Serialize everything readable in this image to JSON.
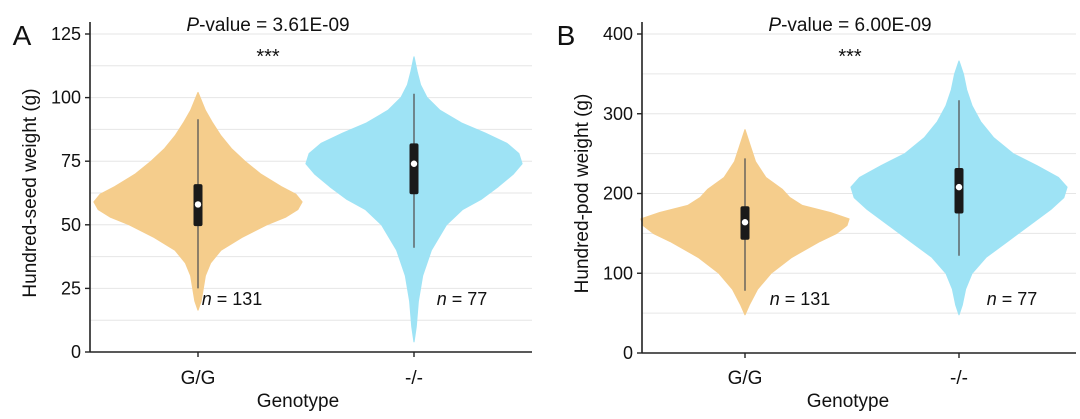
{
  "chart_data": [
    {
      "panel_label": "A",
      "type": "violin",
      "pvalue_label": "P",
      "pvalue_suffix": "-value  = 3.61E-09",
      "significance": "***",
      "xlabel": "Genotype",
      "ylabel": "Hundred-seed weight (g)",
      "ylim": [
        0,
        125
      ],
      "yticks": [
        0,
        25,
        50,
        75,
        100,
        125
      ],
      "grid": true,
      "categories": [
        "G/G",
        "-/-"
      ],
      "groups": [
        {
          "category": "G/G",
          "color": "#f5cd8c",
          "n_label": "n",
          "n_value": " = 131",
          "median": 58,
          "q1": 49.5,
          "q3": 66,
          "whisker_low": 25,
          "whisker_high": 91.5,
          "range": [
            16.5,
            102
          ],
          "density": [
            [
              16.5,
              0
            ],
            [
              20,
              0.03
            ],
            [
              25,
              0.05
            ],
            [
              30,
              0.07
            ],
            [
              35,
              0.12
            ],
            [
              40,
              0.22
            ],
            [
              45,
              0.42
            ],
            [
              50,
              0.66
            ],
            [
              53,
              0.84
            ],
            [
              56,
              0.96
            ],
            [
              59,
              1.0
            ],
            [
              62,
              0.94
            ],
            [
              65,
              0.8
            ],
            [
              70,
              0.6
            ],
            [
              75,
              0.45
            ],
            [
              80,
              0.32
            ],
            [
              85,
              0.22
            ],
            [
              90,
              0.14
            ],
            [
              95,
              0.07
            ],
            [
              100,
              0.02
            ],
            [
              102,
              0
            ]
          ]
        },
        {
          "category": "-/-",
          "color": "#9ee3f5",
          "n_label": "n",
          "n_value": " = 77",
          "median": 74,
          "q1": 62,
          "q3": 82,
          "whisker_low": 41,
          "whisker_high": 101.5,
          "range": [
            4,
            116
          ],
          "density": [
            [
              4,
              0
            ],
            [
              10,
              0.02
            ],
            [
              20,
              0.04
            ],
            [
              30,
              0.08
            ],
            [
              40,
              0.16
            ],
            [
              50,
              0.3
            ],
            [
              56,
              0.45
            ],
            [
              60,
              0.62
            ],
            [
              65,
              0.78
            ],
            [
              70,
              0.92
            ],
            [
              74,
              1.0
            ],
            [
              78,
              0.97
            ],
            [
              82,
              0.86
            ],
            [
              86,
              0.66
            ],
            [
              90,
              0.44
            ],
            [
              95,
              0.24
            ],
            [
              100,
              0.12
            ],
            [
              105,
              0.06
            ],
            [
              110,
              0.03
            ],
            [
              116,
              0
            ]
          ]
        }
      ]
    },
    {
      "panel_label": "B",
      "type": "violin",
      "pvalue_label": "P",
      "pvalue_suffix": "-value  = 6.00E-09",
      "significance": "***",
      "xlabel": "Genotype",
      "ylabel": "Hundred-pod weight (g)",
      "ylim": [
        0,
        400
      ],
      "yticks": [
        0,
        100,
        200,
        300,
        400
      ],
      "grid": true,
      "categories": [
        "G/G",
        "-/-"
      ],
      "groups": [
        {
          "category": "G/G",
          "color": "#f5cd8c",
          "n_label": "n",
          "n_value": " = 131",
          "median": 164,
          "q1": 142,
          "q3": 184,
          "whisker_low": 78,
          "whisker_high": 244,
          "range": [
            48,
            280
          ],
          "density": [
            [
              48,
              0
            ],
            [
              60,
              0.04
            ],
            [
              80,
              0.12
            ],
            [
              100,
              0.25
            ],
            [
              120,
              0.45
            ],
            [
              140,
              0.72
            ],
            [
              150,
              0.88
            ],
            [
              160,
              0.98
            ],
            [
              168,
              1.0
            ],
            [
              176,
              0.82
            ],
            [
              185,
              0.55
            ],
            [
              195,
              0.43
            ],
            [
              205,
              0.36
            ],
            [
              220,
              0.2
            ],
            [
              240,
              0.1
            ],
            [
              260,
              0.05
            ],
            [
              280,
              0
            ]
          ]
        },
        {
          "category": "-/-",
          "color": "#9ee3f5",
          "n_label": "n",
          "n_value": " = 77",
          "median": 208,
          "q1": 175,
          "q3": 232,
          "whisker_low": 122,
          "whisker_high": 317,
          "range": [
            48,
            366
          ],
          "density": [
            [
              48,
              0
            ],
            [
              60,
              0.03
            ],
            [
              80,
              0.06
            ],
            [
              100,
              0.12
            ],
            [
              120,
              0.25
            ],
            [
              140,
              0.45
            ],
            [
              160,
              0.65
            ],
            [
              180,
              0.85
            ],
            [
              195,
              0.97
            ],
            [
              208,
              1.0
            ],
            [
              220,
              0.92
            ],
            [
              235,
              0.72
            ],
            [
              250,
              0.5
            ],
            [
              270,
              0.32
            ],
            [
              290,
              0.2
            ],
            [
              310,
              0.12
            ],
            [
              330,
              0.07
            ],
            [
              350,
              0.04
            ],
            [
              366,
              0
            ]
          ]
        }
      ]
    }
  ]
}
